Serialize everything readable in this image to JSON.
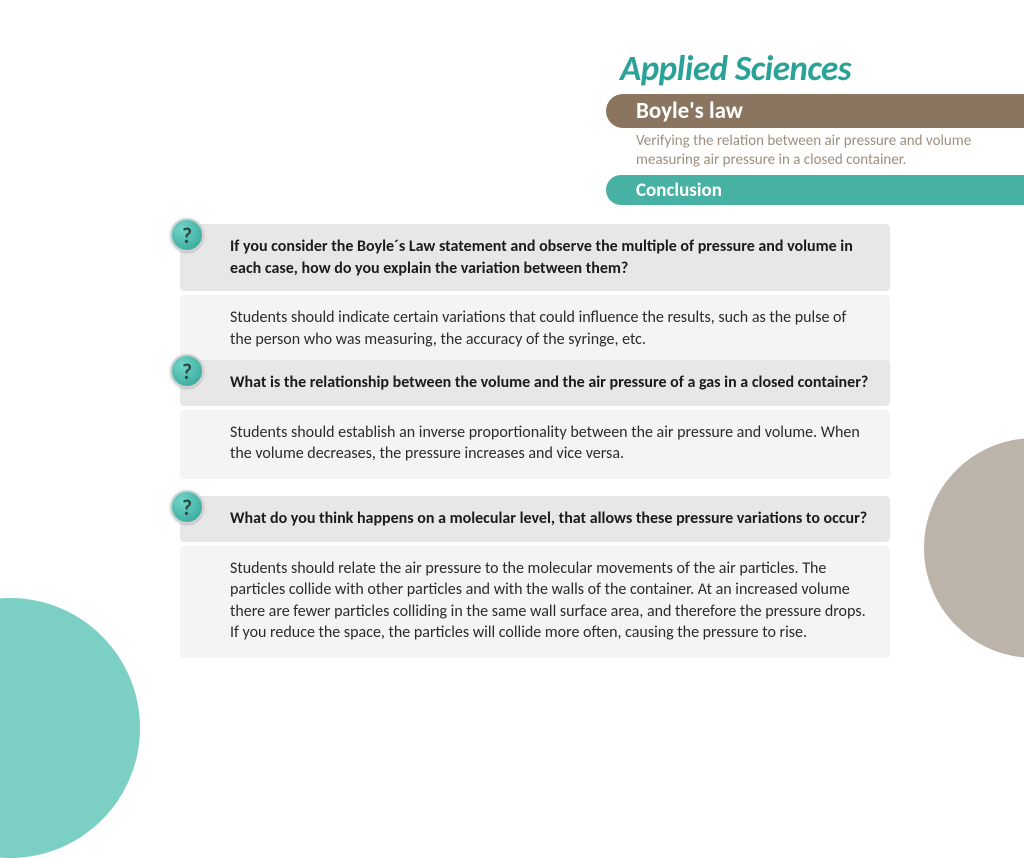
{
  "header": {
    "brand": "Applied Sciences",
    "brand_color": "#2aa298",
    "topic": "Boyle's law",
    "topic_bar_color": "#8a7560",
    "subtitle": "Verifying the relation between air pressure and volume measuring air pressure in a closed container.",
    "subtitle_color": "#9f8e7d",
    "section": "Conclusion",
    "section_bar_color": "#47b2a4"
  },
  "questions": [
    {
      "q": "If you consider the Boyle´s Law statement and observe the multiple of pressure and volume in each case, how do you explain the variation between them?",
      "a": "Students should indicate certain variations that could influence the results, such as the pulse of the person who was measuring, the accuracy of the syringe, etc."
    },
    {
      "q": "What is the relationship between the volume and the air pressure of a gas in a closed container?",
      "a": "Students should establish an inverse proportionality between the air pressure and volume. When the volume decreases, the pressure increases and vice versa."
    },
    {
      "q": "What do you think happens on a molecular level, that allows these pressure variations to occur?",
      "a": "Students should relate the air pressure to the molecular movements of the air particles. The particles collide with other particles and with the walls of the container. At an increased volume there are fewer particles colliding in the same wall surface area, and therefore the pressure drops. If you reduce the space, the particles will collide more often, causing the pressure to rise."
    }
  ],
  "icon_glyph": "?",
  "styling": {
    "question_bg": "#e7e7e7",
    "answer_bg": "#f4f4f4",
    "icon_gradient_start": "#6fd6c8",
    "icon_gradient_end": "#2fa194",
    "deco_teal": "#7ccfc3",
    "deco_taupe": "#bcb4ab",
    "page_bg": "#ffffff",
    "body_font": "Calibri, Arial, sans-serif",
    "brand_fontsize": 35,
    "topic_fontsize": 23,
    "section_fontsize": 19,
    "body_fontsize": 16
  }
}
